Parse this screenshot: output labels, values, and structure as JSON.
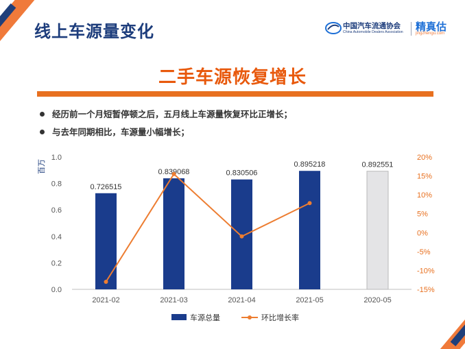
{
  "header": {
    "title": "线上车源量变化",
    "logo_cn": "中国汽车流通协会",
    "logo_en": "China Automobile Dealers Association",
    "brand": "精真估",
    "brand_url": "jingzhengu.com"
  },
  "headline": "二手车源恢复增长",
  "bullets": [
    "经历前一个月短暂停顿之后，五月线上车源量恢复环比正增长；",
    "与去年同期相比，车源量小幅增长；"
  ],
  "colors": {
    "title": "#1d3d7c",
    "accent": "#e8701f",
    "bar": "#1a3c8c",
    "bar_prior_year": "#e4e4e6",
    "line": "#ed7d31"
  },
  "chart_data": {
    "type": "bar",
    "categories": [
      "2021-02",
      "2021-03",
      "2021-04",
      "2021-05",
      "2020-05"
    ],
    "series": [
      {
        "name": "车源总量",
        "type": "bar",
        "axis": "left",
        "values": [
          0.726515,
          0.839068,
          0.830506,
          0.895218,
          0.892551
        ],
        "labels": [
          "0.726515",
          "0.839068",
          "0.830506",
          "0.895218",
          "0.892551"
        ]
      },
      {
        "name": "环比增长率",
        "type": "line",
        "axis": "right",
        "values": [
          -0.13,
          0.155,
          -0.01,
          0.078,
          null
        ]
      }
    ],
    "ylabel": "百万",
    "ylim": [
      0,
      1.0
    ],
    "yticks": [
      "0.0",
      "0.2",
      "0.4",
      "0.6",
      "0.8",
      "1.0"
    ],
    "y2lim": [
      -0.15,
      0.2
    ],
    "y2ticks": [
      "-15%",
      "-10%",
      "-5%",
      "0%",
      "5%",
      "10%",
      "15%",
      "20%"
    ],
    "legend_position": "bottom",
    "grid": false
  }
}
